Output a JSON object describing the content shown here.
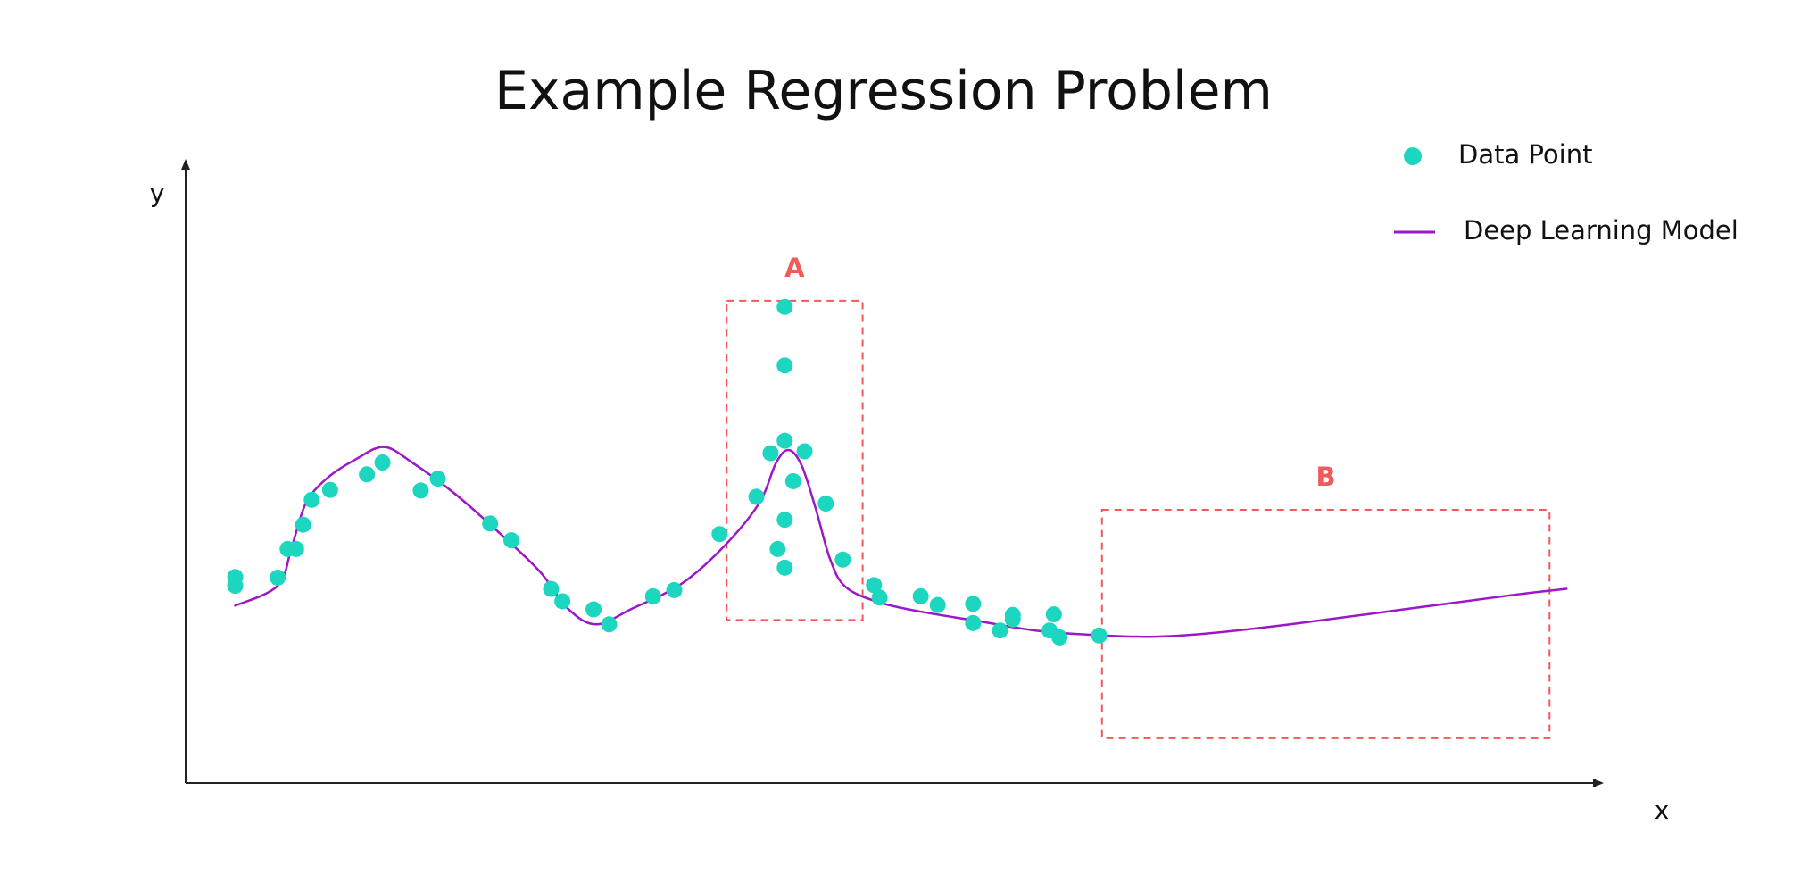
{
  "colors": {
    "point": "#1dd6c0",
    "model_line": "#9b18c8",
    "region": "#f25a5a",
    "axis": "#222222",
    "text": "#111111"
  },
  "chart_data": {
    "type": "scatter",
    "title": "Example Regression Problem",
    "xlabel": "x",
    "ylabel": "y",
    "xlim": [
      0,
      100
    ],
    "ylim": [
      0,
      100
    ],
    "grid": false,
    "axis_ticks": false,
    "legend": {
      "placement": "top-right",
      "entries": [
        {
          "label": "Data Point",
          "marker": "circle"
        },
        {
          "label": "Deep Learning Model",
          "marker": "line"
        }
      ]
    },
    "series": [
      {
        "name": "Data Point",
        "kind": "scatter",
        "points": [
          [
            3.5,
            33.1
          ],
          [
            3.5,
            31.7
          ],
          [
            6.5,
            33.0
          ],
          [
            7.2,
            37.6
          ],
          [
            7.8,
            37.6
          ],
          [
            8.3,
            41.5
          ],
          [
            8.9,
            45.5
          ],
          [
            10.2,
            47.1
          ],
          [
            12.8,
            49.6
          ],
          [
            13.9,
            51.5
          ],
          [
            16.6,
            47.0
          ],
          [
            17.8,
            48.9
          ],
          [
            21.5,
            41.7
          ],
          [
            23.0,
            39.0
          ],
          [
            25.8,
            31.2
          ],
          [
            26.6,
            29.2
          ],
          [
            28.8,
            27.9
          ],
          [
            29.9,
            25.5
          ],
          [
            33.0,
            30.0
          ],
          [
            34.5,
            31.0
          ],
          [
            37.7,
            40.0
          ],
          [
            40.3,
            46.0
          ],
          [
            41.3,
            53.0
          ],
          [
            42.3,
            55.0
          ],
          [
            42.3,
            67.1
          ],
          [
            42.3,
            34.6
          ],
          [
            41.8,
            37.6
          ],
          [
            42.3,
            42.3
          ],
          [
            42.9,
            48.5
          ],
          [
            43.7,
            53.3
          ],
          [
            45.2,
            44.9
          ],
          [
            46.4,
            35.9
          ],
          [
            48.6,
            31.8
          ],
          [
            49.0,
            29.8
          ],
          [
            51.9,
            30.0
          ],
          [
            53.1,
            28.6
          ],
          [
            55.6,
            28.8
          ],
          [
            55.6,
            25.7
          ],
          [
            57.5,
            24.5
          ],
          [
            58.4,
            26.3
          ],
          [
            58.4,
            27.0
          ],
          [
            61.0,
            24.5
          ],
          [
            61.3,
            27.1
          ],
          [
            61.7,
            23.4
          ],
          [
            64.5,
            23.7
          ],
          [
            42.3,
            76.5
          ]
        ]
      },
      {
        "name": "Deep Learning Model",
        "kind": "line",
        "points": [
          [
            3.5,
            28.5
          ],
          [
            6.5,
            31.7
          ],
          [
            7.5,
            38.0
          ],
          [
            8.5,
            45.0
          ],
          [
            10.0,
            49.0
          ],
          [
            12.0,
            52.0
          ],
          [
            14.0,
            54.0
          ],
          [
            16.0,
            51.5
          ],
          [
            19.0,
            46.5
          ],
          [
            22.0,
            40.5
          ],
          [
            25.0,
            34.0
          ],
          [
            27.0,
            28.0
          ],
          [
            29.0,
            25.5
          ],
          [
            31.5,
            28.0
          ],
          [
            35.0,
            32.0
          ],
          [
            38.0,
            38.0
          ],
          [
            40.5,
            45.0
          ],
          [
            41.7,
            51.5
          ],
          [
            42.6,
            53.5
          ],
          [
            43.5,
            51.0
          ],
          [
            44.5,
            44.0
          ],
          [
            45.5,
            36.0
          ],
          [
            46.6,
            31.5
          ],
          [
            49.0,
            29.0
          ],
          [
            52.0,
            27.5
          ],
          [
            56.0,
            26.0
          ],
          [
            60.0,
            24.5
          ],
          [
            64.0,
            23.8
          ],
          [
            68.0,
            23.5
          ],
          [
            72.0,
            24.0
          ],
          [
            78.0,
            25.5
          ],
          [
            86.0,
            27.9
          ],
          [
            94.0,
            30.3
          ],
          [
            97.5,
            31.2
          ]
        ]
      }
    ],
    "annotations": [
      {
        "label": "A",
        "style": "dashed-box",
        "x_range": [
          38.2,
          47.8
        ],
        "y_range": [
          26.2,
          77.5
        ]
      },
      {
        "label": "B",
        "style": "dashed-box",
        "x_range": [
          64.7,
          96.3
        ],
        "y_range": [
          7.2,
          43.9
        ]
      }
    ]
  }
}
